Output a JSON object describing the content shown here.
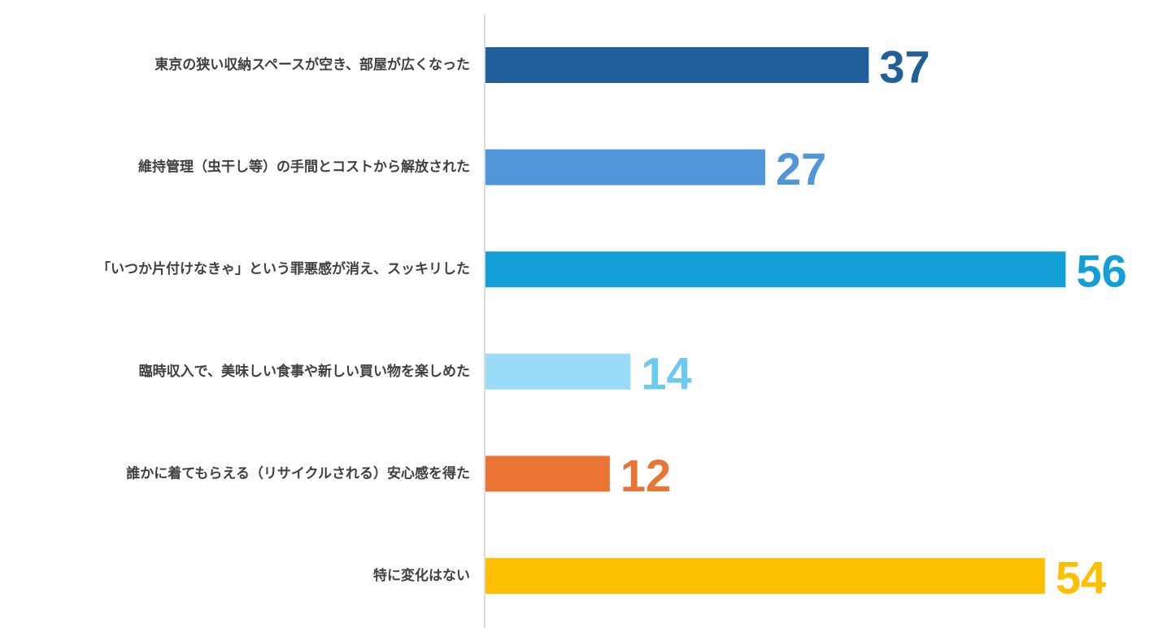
{
  "chart_data": {
    "type": "bar",
    "orientation": "horizontal",
    "categories": [
      "東京の狭い収納スペースが空き、部屋が広くなった",
      "維持管理（虫干し等）の手間とコストから解放された",
      "「いつか片付けなきゃ」という罪悪感が消え、スッキリした",
      "臨時収入で、美味しい食事や新しい買い物を楽しめた",
      "誰かに着てもらえる（リサイクルされる）安心感を得た",
      "特に変化はない"
    ],
    "values": [
      37,
      27,
      56,
      14,
      12,
      54
    ],
    "value_labels": [
      "37",
      "27",
      "56",
      "14",
      "12",
      "54"
    ],
    "colors": [
      "#215f9a",
      "#5096d9",
      "#129fd8",
      "#9adcf7",
      "#e97433",
      "#fdc000"
    ],
    "xlim": [
      0,
      60
    ],
    "grid": false,
    "legend": "none"
  }
}
